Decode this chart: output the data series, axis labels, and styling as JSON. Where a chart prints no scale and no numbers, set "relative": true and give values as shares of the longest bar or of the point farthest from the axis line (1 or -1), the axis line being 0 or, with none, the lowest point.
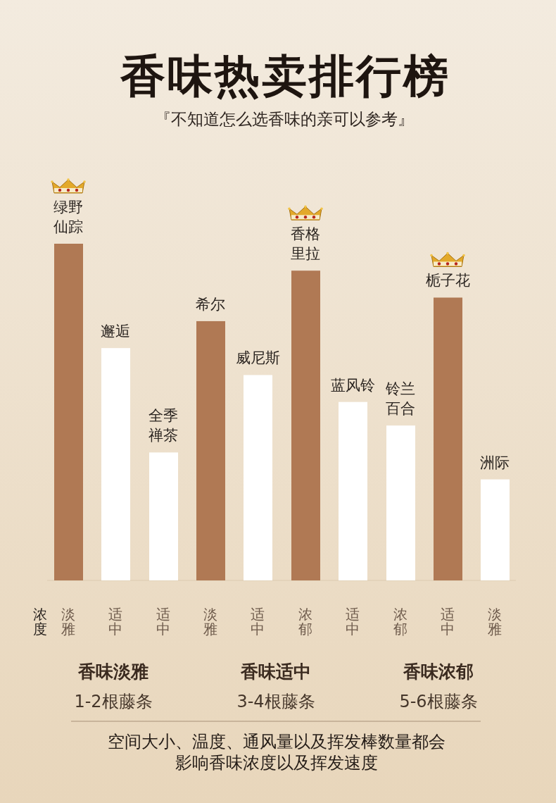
{
  "chart_data": {
    "type": "bar",
    "title": "香味热卖排行榜",
    "subtitle": "『不知道怎么选香味的亲可以参考』",
    "xlabel": "浓度",
    "relative": true,
    "categories": [
      "绿野仙踪",
      "邂逅",
      "全季禅茶",
      "希尔",
      "威尼斯",
      "香格里拉",
      "蓝风铃",
      "铃兰百合",
      "栀子花",
      "洲际"
    ],
    "values": [
      1,
      0.69,
      0.38,
      0.77,
      0.61,
      0.92,
      0.53,
      0.46,
      0.84,
      0.3
    ],
    "colors": [
      "#b07954",
      "#ffffff",
      "#ffffff",
      "#b07954",
      "#ffffff",
      "#b07954",
      "#ffffff",
      "#ffffff",
      "#b07954",
      "#ffffff"
    ],
    "annotations": [
      "淡雅",
      "适中",
      "适中",
      "淡雅",
      "适中",
      "浓郁",
      "适中",
      "浓郁",
      "适中",
      "淡雅",
      "香味淡雅",
      "1-2根藤条",
      "香味适中",
      "3-4根藤条",
      "香味浓郁",
      "5-6根藤条",
      "空间大小、温度、通风量以及挥发棒数量都会影响香味浓度以及挥发速度"
    ]
  }
}
